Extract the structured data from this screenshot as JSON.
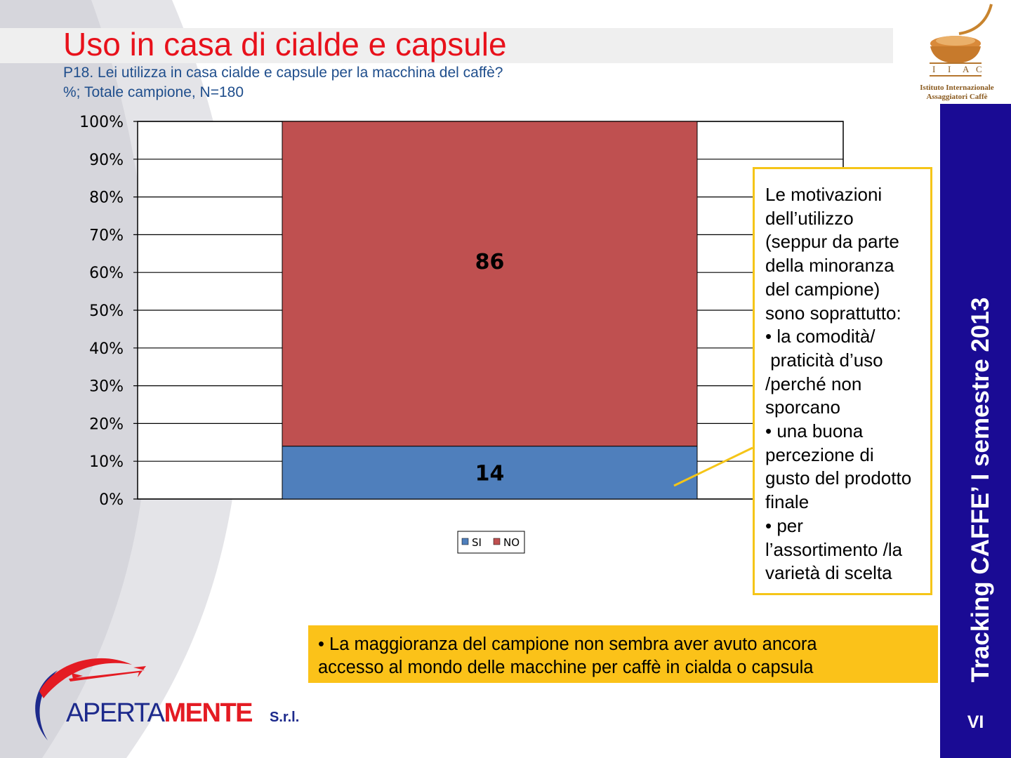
{
  "header": {
    "title": "Uso in casa di cialde e capsule",
    "subtitle_line1": "P18. Lei utilizza in casa cialde e capsule per la macchina del caffè?",
    "subtitle_line2": "%; Totale campione, N=180"
  },
  "logo_iiac": {
    "letters": [
      "I",
      "I",
      "A",
      "C"
    ],
    "name_line1": "Istituto Internazionale",
    "name_line2": "Assaggiatori Caffè"
  },
  "sidebar": {
    "title": "Tracking CAFFE’ I semestre 2013",
    "page_number": "VI"
  },
  "chart_data": {
    "type": "bar",
    "stacked": true,
    "categories": [
      ""
    ],
    "series": [
      {
        "name": "SI",
        "values": [
          14
        ],
        "color": "#4f7fbc"
      },
      {
        "name": "NO",
        "values": [
          86
        ],
        "color": "#bf5050"
      }
    ],
    "y_ticks": [
      "0%",
      "10%",
      "20%",
      "30%",
      "40%",
      "50%",
      "60%",
      "70%",
      "80%",
      "90%",
      "100%"
    ],
    "ylim": [
      0,
      100
    ],
    "grid": true,
    "legend": "bottom-center"
  },
  "motivation_box": {
    "lines": [
      "Le motivazioni",
      "dell’utilizzo",
      "(seppur da parte",
      "della minoranza",
      "del campione)",
      "sono soprattutto:",
      "• la comodità/",
      " praticità d’uso",
      "/perché non",
      "sporcano",
      "• una buona",
      "percezione di",
      "gusto del prodotto",
      "finale",
      "• per",
      "l’assortimento /la",
      "varietà di scelta"
    ]
  },
  "conclusion": {
    "line1": "• La maggioranza del campione non sembra aver avuto ancora",
    "line2": "accesso al mondo delle macchine per caffè in cialda o capsula"
  },
  "logo_apertamente": {
    "part1": "APERTA",
    "part2": "MENTE",
    "suffix": "S.r.l.",
    "colors": {
      "blue": "#1d2a8c",
      "red": "#e41b23"
    }
  }
}
